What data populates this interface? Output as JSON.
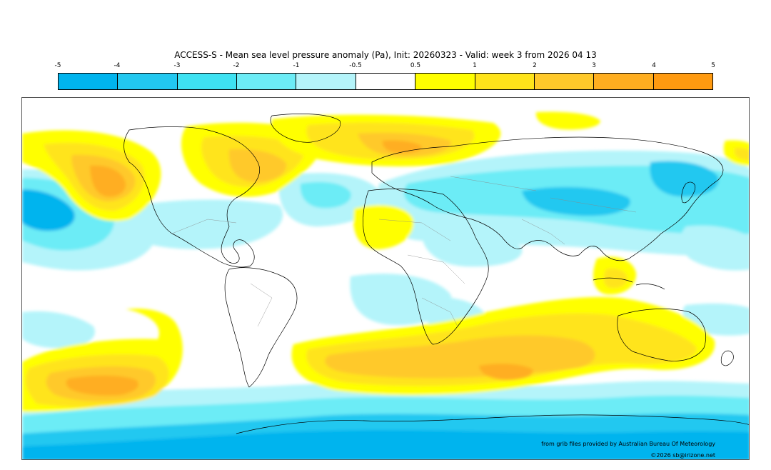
{
  "title": "ACCESS-S - Mean sea level pressure anomaly (Pa), Init: 20260323 - Valid: week 3 from 2026 04 13",
  "colorbar": {
    "ticks": [
      "-5",
      "-4",
      "-3",
      "-2",
      "-1",
      "-0.5",
      "0.5",
      "1",
      "2",
      "3",
      "4",
      "5"
    ],
    "colors": [
      "#00b4ee",
      "#22c8f0",
      "#3ee2f2",
      "#6cecf6",
      "#b4f4fa",
      "#ffffff",
      "#ffff00",
      "#ffe41a",
      "#ffc92a",
      "#ffae20",
      "#ff9a10"
    ]
  },
  "map": {
    "levels": {
      "neg4": "#00b4ee",
      "neg3": "#22c8f0",
      "neg2": "#6cecf6",
      "neg05": "#b4f4fa",
      "pos05": "#ffff00",
      "pos1": "#ffe41a",
      "pos2": "#ffc92a",
      "pos3": "#ffae20",
      "pos4": "#ff9a10"
    }
  },
  "credits": {
    "source": "from grib files provided by Australian Bureau Of Meteorology",
    "copyright": "©2026 sb@irizone.net"
  }
}
